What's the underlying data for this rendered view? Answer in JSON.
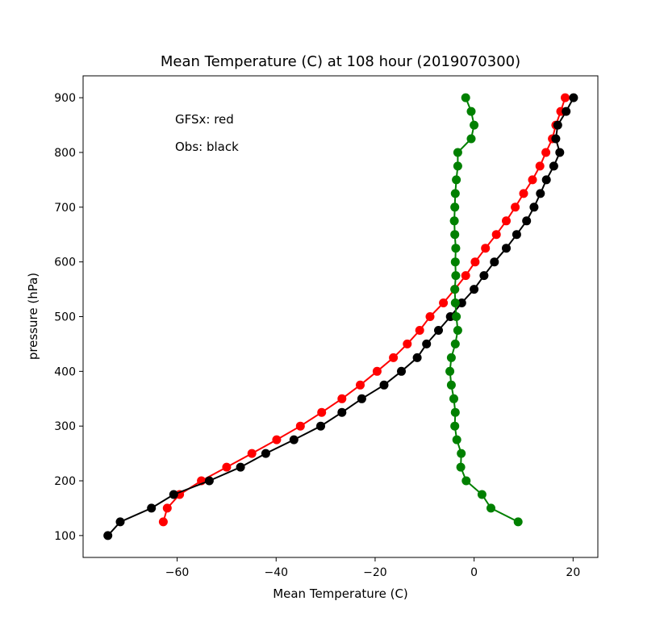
{
  "chart_data": {
    "type": "line",
    "title": "Mean Temperature (C) at 108 hour (2019070300)",
    "xlabel": "Mean Temperature (C)",
    "ylabel": "pressure (hPa)",
    "xlim": [
      -79,
      25
    ],
    "ylim": [
      60,
      940
    ],
    "xticks": [
      -60,
      -40,
      -20,
      0,
      20
    ],
    "yticks": [
      100,
      200,
      300,
      400,
      500,
      600,
      700,
      800,
      900
    ],
    "grid": false,
    "annotations": [
      "GFSx: red",
      "Obs: black"
    ],
    "series": [
      {
        "color": "#ff0000",
        "points": [
          [
            18.4,
            900
          ],
          [
            17.5,
            875
          ],
          [
            16.5,
            850
          ],
          [
            15.8,
            825
          ],
          [
            14.5,
            800
          ],
          [
            13.3,
            775
          ],
          [
            11.8,
            750
          ],
          [
            10.0,
            725
          ],
          [
            8.3,
            700
          ],
          [
            6.5,
            675
          ],
          [
            4.5,
            650
          ],
          [
            2.3,
            625
          ],
          [
            0.2,
            600
          ],
          [
            -1.7,
            575
          ],
          [
            -3.9,
            550
          ],
          [
            -6.2,
            525
          ],
          [
            -8.9,
            500
          ],
          [
            -11.0,
            475
          ],
          [
            -13.5,
            450
          ],
          [
            -16.3,
            425
          ],
          [
            -19.6,
            400
          ],
          [
            -23.0,
            375
          ],
          [
            -26.7,
            350
          ],
          [
            -30.8,
            325
          ],
          [
            -35.1,
            300
          ],
          [
            -39.9,
            275
          ],
          [
            -44.9,
            250
          ],
          [
            -50.0,
            225
          ],
          [
            -55.1,
            200
          ],
          [
            -59.5,
            175
          ],
          [
            -62.0,
            150
          ],
          [
            -62.8,
            125
          ]
        ]
      },
      {
        "color": "#000000",
        "points": [
          [
            20.1,
            900
          ],
          [
            18.6,
            875
          ],
          [
            16.9,
            850
          ],
          [
            16.5,
            825
          ],
          [
            17.3,
            800
          ],
          [
            16.1,
            775
          ],
          [
            14.6,
            750
          ],
          [
            13.4,
            725
          ],
          [
            12.1,
            700
          ],
          [
            10.6,
            675
          ],
          [
            8.6,
            650
          ],
          [
            6.5,
            625
          ],
          [
            4.1,
            600
          ],
          [
            2.0,
            575
          ],
          [
            0.0,
            550
          ],
          [
            -2.5,
            525
          ],
          [
            -4.8,
            500
          ],
          [
            -7.2,
            475
          ],
          [
            -9.6,
            450
          ],
          [
            -11.5,
            425
          ],
          [
            -14.7,
            400
          ],
          [
            -18.2,
            375
          ],
          [
            -22.7,
            350
          ],
          [
            -26.7,
            325
          ],
          [
            -31.0,
            300
          ],
          [
            -36.4,
            275
          ],
          [
            -42.1,
            250
          ],
          [
            -47.2,
            225
          ],
          [
            -53.5,
            200
          ],
          [
            -60.7,
            175
          ],
          [
            -65.2,
            150
          ],
          [
            -71.5,
            125
          ],
          [
            -74.0,
            100
          ]
        ]
      },
      {
        "color": "#008000",
        "points": [
          [
            -1.7,
            900
          ],
          [
            -0.6,
            875
          ],
          [
            0.0,
            850
          ],
          [
            -0.6,
            825
          ],
          [
            -3.3,
            800
          ],
          [
            -3.3,
            775
          ],
          [
            -3.6,
            750
          ],
          [
            -3.8,
            725
          ],
          [
            -3.9,
            700
          ],
          [
            -4.0,
            675
          ],
          [
            -3.9,
            650
          ],
          [
            -3.7,
            625
          ],
          [
            -3.8,
            600
          ],
          [
            -3.7,
            575
          ],
          [
            -3.9,
            550
          ],
          [
            -3.8,
            525
          ],
          [
            -3.6,
            500
          ],
          [
            -3.3,
            475
          ],
          [
            -3.8,
            450
          ],
          [
            -4.6,
            425
          ],
          [
            -4.9,
            400
          ],
          [
            -4.6,
            375
          ],
          [
            -4.1,
            350
          ],
          [
            -3.8,
            325
          ],
          [
            -3.9,
            300
          ],
          [
            -3.5,
            275
          ],
          [
            -2.6,
            250
          ],
          [
            -2.7,
            225
          ],
          [
            -1.6,
            200
          ],
          [
            1.6,
            175
          ],
          [
            3.4,
            150
          ],
          [
            8.9,
            125
          ]
        ]
      }
    ]
  }
}
